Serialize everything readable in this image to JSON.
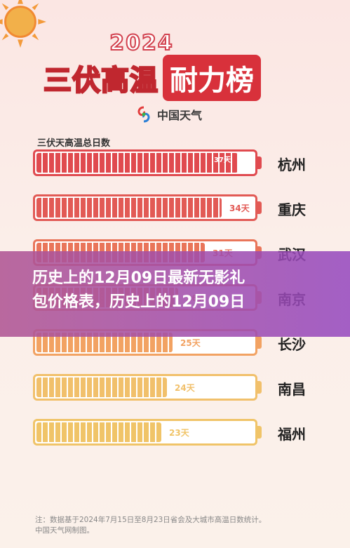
{
  "header": {
    "year": "2024",
    "title_plain": "三伏高温",
    "title_box": "耐力榜",
    "logo_text": "中国天气"
  },
  "caption": {
    "line1": "历史上的12月09日最新无影礼",
    "line2": "包价格表，历史上的12月09日"
  },
  "footer": {
    "line1": "注：数据基于2024年7月15日至8月23日省会及大城市高温日数统计。",
    "line2": "中国天气网制图。"
  },
  "chart_data": {
    "type": "bar",
    "title": "三伏天高温总日数",
    "categories": [
      "杭州",
      "重庆",
      "武汉",
      "南京",
      "长沙",
      "南昌",
      "福州"
    ],
    "values": [
      37,
      34,
      31,
      26,
      25,
      24,
      23
    ],
    "value_labels": [
      "37天",
      "34天",
      "31天",
      "26天",
      "25天",
      "24天",
      "23天"
    ],
    "xlim": [
      0,
      40
    ],
    "colors": [
      "#e04a4f",
      "#e25a55",
      "#e9755a",
      "#f08e5e",
      "#f2a262",
      "#f1c06b",
      "#f0c468"
    ]
  }
}
